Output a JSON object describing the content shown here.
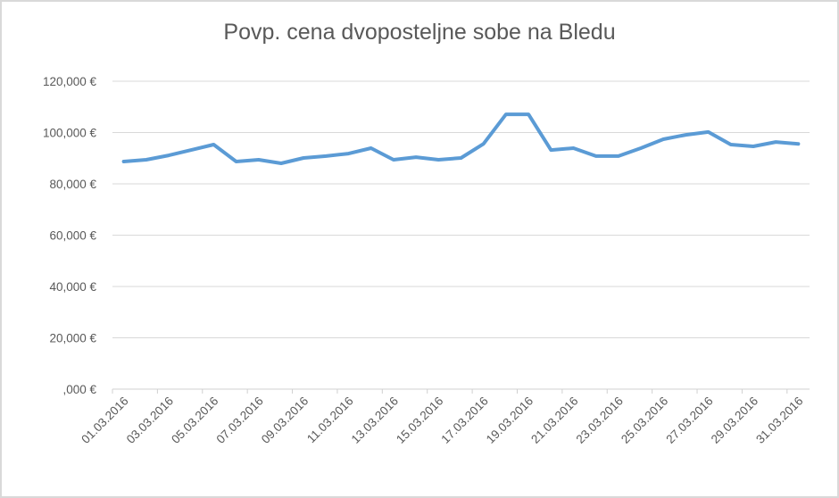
{
  "chart_data": {
    "type": "line",
    "title": "Povp. cena dvoposteljne sobe na Bledu",
    "xlabel": "",
    "ylabel": "",
    "ylim": [
      0,
      120000
    ],
    "yticks": [
      0,
      20000,
      40000,
      60000,
      80000,
      100000,
      120000
    ],
    "ytick_labels": [
      ",000 €",
      "20,000 €",
      "40,000 €",
      "60,000 €",
      "80,000 €",
      "100,000 €",
      "120,000 €"
    ],
    "xtick_labels": [
      "01.03.2016",
      "03.03.2016",
      "05.03.2016",
      "07.03.2016",
      "09.03.2016",
      "11.03.2016",
      "13.03.2016",
      "15.03.2016",
      "17.03.2016",
      "19.03.2016",
      "21.03.2016",
      "23.03.2016",
      "25.03.2016",
      "27.03.2016",
      "29.03.2016",
      "31.03.2016"
    ],
    "grid": "horizontal",
    "legend": "none",
    "line_color": "#5b9bd5",
    "x": [
      "01.03.2016",
      "02.03.2016",
      "03.03.2016",
      "04.03.2016",
      "05.03.2016",
      "06.03.2016",
      "07.03.2016",
      "08.03.2016",
      "09.03.2016",
      "10.03.2016",
      "11.03.2016",
      "12.03.2016",
      "13.03.2016",
      "14.03.2016",
      "15.03.2016",
      "16.03.2016",
      "17.03.2016",
      "18.03.2016",
      "19.03.2016",
      "20.03.2016",
      "21.03.2016",
      "22.03.2016",
      "23.03.2016",
      "24.03.2016",
      "25.03.2016",
      "26.03.2016",
      "27.03.2016",
      "28.03.2016",
      "29.03.2016",
      "30.03.2016",
      "31.03.2016"
    ],
    "series": [
      {
        "name": "Povp. cena",
        "values": [
          88700,
          89400,
          91100,
          93200,
          95300,
          88700,
          89400,
          88000,
          90100,
          90800,
          91800,
          93900,
          89400,
          90400,
          89400,
          90100,
          95600,
          107100,
          107100,
          93200,
          93900,
          90800,
          90800,
          93900,
          97400,
          99100,
          100200,
          95300,
          94600,
          96300,
          95600
        ]
      }
    ]
  }
}
